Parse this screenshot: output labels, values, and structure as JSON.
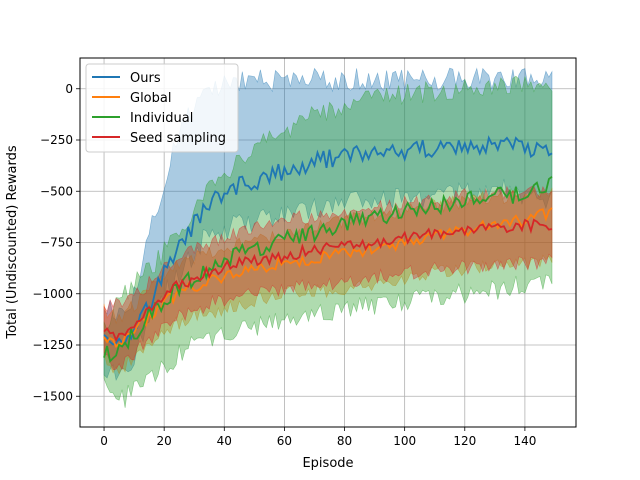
{
  "chart_data": {
    "type": "line",
    "title": "",
    "xlabel": "Episode",
    "ylabel": "Total (Undiscounted) Rewards",
    "xlim": [
      -8,
      157
    ],
    "ylim": [
      -1650,
      150
    ],
    "xticks": [
      0,
      20,
      40,
      60,
      80,
      100,
      120,
      140
    ],
    "yticks": [
      0,
      -250,
      -500,
      -750,
      -1000,
      -1250,
      -1500
    ],
    "ytick_labels": [
      "0",
      "−250",
      "−500",
      "−750",
      "−1000",
      "−1250",
      "−1500"
    ],
    "grid": true,
    "legend_position": "upper-left",
    "series": [
      {
        "name": "Ours",
        "color": "#1f77b4",
        "anchors_x": [
          0,
          5,
          10,
          15,
          20,
          25,
          30,
          35,
          40,
          45,
          50,
          55,
          60,
          65,
          70,
          75,
          80,
          85,
          90,
          95,
          100,
          105,
          110,
          115,
          120,
          125,
          130,
          135,
          140,
          145,
          149
        ],
        "anchors_mean": [
          -1180,
          -1240,
          -1160,
          -1060,
          -900,
          -770,
          -660,
          -560,
          -510,
          -470,
          -450,
          -430,
          -400,
          -380,
          -360,
          -340,
          -330,
          -320,
          -310,
          -300,
          -300,
          -295,
          -290,
          -285,
          -280,
          -280,
          -280,
          -275,
          -300,
          -300,
          -330
        ],
        "anchors_lower": [
          -1350,
          -1400,
          -1300,
          -1150,
          -1000,
          -900,
          -800,
          -700,
          -700,
          -650,
          -650,
          -630,
          -620,
          -600,
          -590,
          -580,
          -560,
          -550,
          -560,
          -540,
          -540,
          -540,
          -530,
          -520,
          -500,
          -520,
          -500,
          -480,
          -520,
          -520,
          -550
        ],
        "anchors_upper": [
          -1050,
          -1100,
          -1000,
          -700,
          -450,
          -200,
          -100,
          -20,
          20,
          40,
          40,
          40,
          30,
          40,
          50,
          40,
          40,
          50,
          40,
          40,
          40,
          50,
          40,
          50,
          40,
          50,
          40,
          50,
          50,
          60,
          60
        ],
        "noise": 45
      },
      {
        "name": "Global",
        "color": "#ff7f0e",
        "anchors_x": [
          0,
          5,
          10,
          15,
          20,
          25,
          30,
          35,
          40,
          45,
          50,
          55,
          60,
          65,
          70,
          75,
          80,
          85,
          90,
          95,
          100,
          105,
          110,
          115,
          120,
          125,
          130,
          135,
          140,
          145,
          149
        ],
        "anchors_mean": [
          -1200,
          -1260,
          -1180,
          -1120,
          -1040,
          -1000,
          -960,
          -940,
          -920,
          -900,
          -880,
          -860,
          -850,
          -840,
          -830,
          -810,
          -800,
          -790,
          -780,
          -770,
          -750,
          -730,
          -720,
          -710,
          -690,
          -680,
          -660,
          -650,
          -640,
          -620,
          -600
        ],
        "anchors_lower": [
          -1320,
          -1400,
          -1300,
          -1250,
          -1180,
          -1140,
          -1110,
          -1090,
          -1070,
          -1050,
          -1030,
          -1010,
          -1000,
          -990,
          -990,
          -980,
          -970,
          -960,
          -950,
          -940,
          -930,
          -920,
          -900,
          -890,
          -880,
          -870,
          -860,
          -860,
          -850,
          -840,
          -830
        ],
        "anchors_upper": [
          -1080,
          -1120,
          -1050,
          -990,
          -900,
          -860,
          -820,
          -800,
          -780,
          -760,
          -740,
          -720,
          -700,
          -690,
          -680,
          -660,
          -640,
          -630,
          -620,
          -610,
          -600,
          -580,
          -570,
          -560,
          -550,
          -540,
          -530,
          -520,
          -510,
          -500,
          -490
        ],
        "noise": 30
      },
      {
        "name": "Individual",
        "color": "#2ca02c",
        "anchors_x": [
          0,
          5,
          10,
          15,
          20,
          25,
          30,
          35,
          40,
          45,
          50,
          55,
          60,
          65,
          70,
          75,
          80,
          85,
          90,
          95,
          100,
          105,
          110,
          115,
          120,
          125,
          130,
          135,
          140,
          145,
          149
        ],
        "anchors_mean": [
          -1300,
          -1280,
          -1200,
          -1100,
          -1040,
          -970,
          -920,
          -870,
          -830,
          -800,
          -780,
          -760,
          -740,
          -720,
          -700,
          -680,
          -660,
          -650,
          -630,
          -610,
          -600,
          -580,
          -570,
          -560,
          -550,
          -540,
          -530,
          -520,
          -500,
          -480,
          -470
        ],
        "anchors_lower": [
          -1450,
          -1540,
          -1450,
          -1400,
          -1340,
          -1300,
          -1250,
          -1230,
          -1200,
          -1180,
          -1160,
          -1150,
          -1130,
          -1120,
          -1100,
          -1090,
          -1080,
          -1070,
          -1060,
          -1050,
          -1040,
          -1030,
          -1020,
          -1010,
          -1000,
          -990,
          -980,
          -970,
          -960,
          -960,
          -950
        ],
        "anchors_upper": [
          -1150,
          -1050,
          -950,
          -880,
          -800,
          -700,
          -600,
          -500,
          -430,
          -360,
          -300,
          -250,
          -200,
          -160,
          -130,
          -110,
          -90,
          -70,
          -50,
          -40,
          -30,
          -20,
          -10,
          0,
          10,
          20,
          20,
          30,
          10,
          0,
          -10
        ],
        "noise": 45
      },
      {
        "name": "Seed sampling",
        "color": "#d62728",
        "anchors_x": [
          0,
          5,
          10,
          15,
          20,
          25,
          30,
          35,
          40,
          45,
          50,
          55,
          60,
          65,
          70,
          75,
          80,
          85,
          90,
          95,
          100,
          105,
          110,
          115,
          120,
          125,
          130,
          135,
          140,
          145,
          149
        ],
        "anchors_mean": [
          -1180,
          -1220,
          -1150,
          -1080,
          -1000,
          -960,
          -920,
          -890,
          -870,
          -850,
          -840,
          -830,
          -820,
          -800,
          -790,
          -780,
          -770,
          -760,
          -750,
          -740,
          -730,
          -720,
          -710,
          -700,
          -690,
          -690,
          -680,
          -680,
          -670,
          -660,
          -660
        ],
        "anchors_lower": [
          -1320,
          -1360,
          -1290,
          -1220,
          -1150,
          -1110,
          -1080,
          -1050,
          -1030,
          -1010,
          -1000,
          -990,
          -980,
          -970,
          -960,
          -950,
          -940,
          -930,
          -920,
          -910,
          -900,
          -890,
          -880,
          -880,
          -870,
          -870,
          -860,
          -860,
          -850,
          -850,
          -840
        ],
        "anchors_upper": [
          -1050,
          -1050,
          -1000,
          -950,
          -880,
          -820,
          -780,
          -750,
          -720,
          -700,
          -680,
          -660,
          -650,
          -630,
          -620,
          -610,
          -600,
          -590,
          -580,
          -570,
          -560,
          -550,
          -540,
          -530,
          -520,
          -520,
          -510,
          -510,
          -500,
          -500,
          -490
        ],
        "noise": 30
      }
    ]
  }
}
